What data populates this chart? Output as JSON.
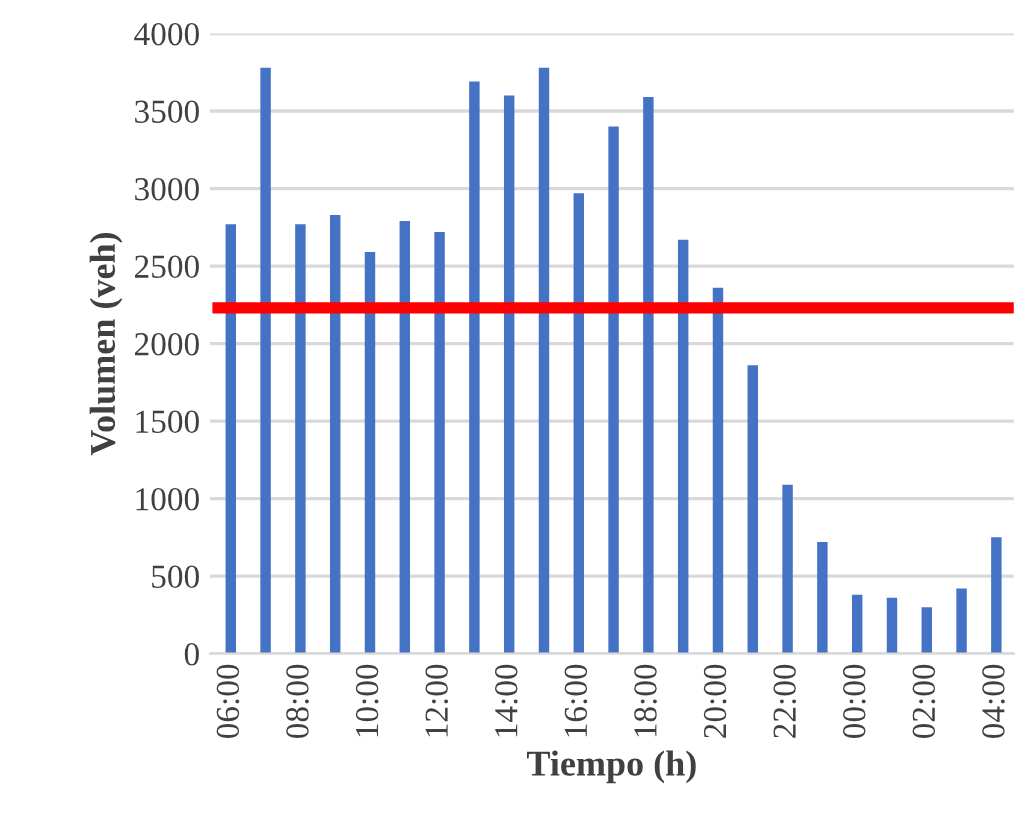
{
  "chart_data": {
    "type": "bar",
    "xlabel": "Tiempo (h)",
    "ylabel": "Volumen (veh)",
    "categories": [
      "06:00",
      null,
      "08:00",
      null,
      "10:00",
      null,
      "12:00",
      null,
      "14:00",
      null,
      "16:00",
      null,
      "18:00",
      null,
      "20:00",
      null,
      "22:00",
      null,
      "00:00",
      null,
      "02:00",
      null,
      "04:00"
    ],
    "values": [
      2770,
      3780,
      2770,
      2830,
      2590,
      2790,
      2720,
      3690,
      3600,
      3780,
      2970,
      3400,
      3590,
      2670,
      2360,
      1860,
      1090,
      720,
      380,
      360,
      300,
      420,
      750
    ],
    "color": "#4472c4",
    "ylim": [
      0,
      4000
    ],
    "yticks": [
      0,
      500,
      1000,
      1500,
      2000,
      2500,
      3000,
      3500,
      4000
    ],
    "grid": "y",
    "ref_lines": [
      {
        "axis": "y",
        "value": 2230,
        "color": "#ff0000"
      }
    ]
  }
}
